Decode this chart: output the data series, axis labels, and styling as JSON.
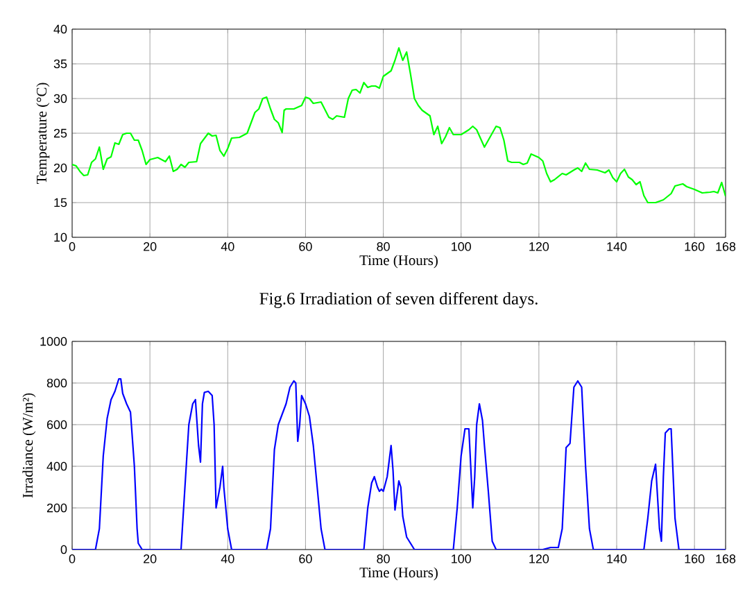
{
  "chart_data": [
    {
      "type": "line",
      "xlabel": "Time (Hours)",
      "ylabel": "Temperature (°C)",
      "color": "#00ff00",
      "grid": true,
      "xlim": [
        0,
        168
      ],
      "ylim": [
        10,
        40
      ],
      "xticks": [
        0,
        20,
        40,
        60,
        80,
        100,
        120,
        140,
        160,
        168
      ],
      "yticks": [
        10,
        15,
        20,
        25,
        30,
        35,
        40
      ],
      "annotations": [
        "Fig.6 Irradiation of seven different days."
      ],
      "x": [
        0,
        1,
        2,
        3,
        4,
        5,
        6,
        7,
        8,
        9,
        10,
        11,
        12,
        13,
        14,
        15,
        16,
        17,
        18,
        19,
        20,
        22,
        24,
        25,
        26,
        27,
        28,
        29,
        30,
        32,
        33,
        35,
        36,
        37,
        38,
        39,
        40,
        41,
        43,
        45,
        46,
        47,
        48,
        49,
        50,
        51,
        52,
        53,
        54,
        54.5,
        55,
        57,
        59,
        60,
        61,
        62,
        64,
        66,
        67,
        68,
        70,
        71,
        72,
        73,
        74,
        75,
        76,
        77,
        78,
        79,
        80,
        82,
        83,
        84,
        85,
        86,
        87,
        88,
        89,
        90,
        92,
        93,
        94,
        95,
        96,
        97,
        98,
        100,
        102,
        103,
        104,
        106,
        108,
        109,
        110,
        111,
        112,
        113,
        115,
        116,
        117,
        118,
        120,
        121,
        122,
        123,
        124,
        126,
        127,
        129,
        130,
        131,
        132,
        133,
        135,
        137,
        138,
        139,
        140,
        141,
        142,
        143,
        144,
        145,
        146,
        147,
        148,
        150,
        152,
        154,
        155,
        157,
        158,
        160,
        162,
        164,
        165,
        166,
        167,
        168
      ],
      "values": [
        20.5,
        20.3,
        19.5,
        18.9,
        19.0,
        20.8,
        21.3,
        23.0,
        19.8,
        21.3,
        21.6,
        23.6,
        23.4,
        24.8,
        25.0,
        25.0,
        24.0,
        24.0,
        22.5,
        20.5,
        21.2,
        21.5,
        20.9,
        21.7,
        19.5,
        19.8,
        20.5,
        20.1,
        20.8,
        20.9,
        23.5,
        25.0,
        24.6,
        24.7,
        22.5,
        21.7,
        22.8,
        24.3,
        24.4,
        25.0,
        26.5,
        28.0,
        28.5,
        30.0,
        30.2,
        28.5,
        27.0,
        26.5,
        25.1,
        28.3,
        28.5,
        28.5,
        29.0,
        30.2,
        30.0,
        29.3,
        29.5,
        27.3,
        27.0,
        27.5,
        27.3,
        30.0,
        31.2,
        31.3,
        30.8,
        32.3,
        31.6,
        31.8,
        31.8,
        31.5,
        33.2,
        34.0,
        35.5,
        37.3,
        35.5,
        36.7,
        33.5,
        30.0,
        29.0,
        28.3,
        27.5,
        24.8,
        26.0,
        23.5,
        24.5,
        25.8,
        24.8,
        24.8,
        25.5,
        26.0,
        25.5,
        23.0,
        25.0,
        26.0,
        25.8,
        24.0,
        21.0,
        20.8,
        20.8,
        20.5,
        20.7,
        22.0,
        21.5,
        21.0,
        19.2,
        18.0,
        18.3,
        19.2,
        19.0,
        19.7,
        20.0,
        19.5,
        20.7,
        19.8,
        19.7,
        19.3,
        19.7,
        18.6,
        18.0,
        19.2,
        19.8,
        18.7,
        18.3,
        17.6,
        18.0,
        16.0,
        15.0,
        15.0,
        15.4,
        16.3,
        17.4,
        17.7,
        17.3,
        16.9,
        16.4,
        16.5,
        16.6,
        16.4,
        17.9,
        15.9
      ]
    },
    {
      "type": "line",
      "xlabel": "Time (Hours)",
      "ylabel": "Irradiance (W/m²)",
      "color": "#0000ff",
      "grid": true,
      "xlim": [
        0,
        168
      ],
      "ylim": [
        0,
        1000
      ],
      "xticks": [
        0,
        20,
        40,
        60,
        80,
        100,
        120,
        140,
        160,
        168
      ],
      "yticks": [
        0,
        200,
        400,
        600,
        800,
        1000
      ],
      "x": [
        0,
        6,
        7,
        8,
        9,
        10,
        11,
        12,
        12.5,
        13,
        14,
        15,
        16,
        16.7,
        17,
        18,
        28,
        29,
        30,
        31,
        31.7,
        32.5,
        33,
        33.5,
        34,
        35,
        36,
        36.5,
        37,
        38,
        38.7,
        39,
        40,
        41,
        50,
        51,
        52,
        53,
        54,
        55,
        56,
        57,
        57.5,
        58,
        58.5,
        59,
        60,
        61,
        62,
        63,
        64,
        65,
        75,
        76,
        77,
        77.7,
        78.5,
        79,
        79.5,
        80,
        81,
        82,
        82.5,
        83,
        84,
        84.5,
        85,
        86,
        87,
        88,
        98,
        99,
        100,
        101,
        102,
        103,
        103.5,
        104,
        104.7,
        105.5,
        106,
        107,
        108,
        109,
        121,
        123,
        125,
        126,
        127,
        128,
        129,
        130,
        131,
        132,
        133,
        134,
        147,
        148,
        149,
        150,
        151,
        151.5,
        152,
        152.5,
        153.5,
        154,
        155,
        156,
        168
      ],
      "values": [
        0,
        0,
        100,
        450,
        630,
        720,
        760,
        820,
        820,
        750,
        700,
        660,
        400,
        100,
        30,
        0,
        0,
        300,
        600,
        700,
        720,
        500,
        420,
        700,
        755,
        760,
        740,
        600,
        200,
        300,
        400,
        300,
        100,
        0,
        0,
        100,
        480,
        600,
        650,
        700,
        780,
        810,
        800,
        520,
        600,
        740,
        700,
        640,
        500,
        300,
        100,
        0,
        0,
        200,
        320,
        350,
        300,
        280,
        290,
        280,
        350,
        500,
        380,
        190,
        330,
        300,
        160,
        60,
        30,
        0,
        0,
        200,
        450,
        580,
        580,
        200,
        350,
        600,
        700,
        620,
        500,
        280,
        40,
        0,
        0,
        10,
        10,
        100,
        490,
        510,
        780,
        810,
        780,
        400,
        100,
        0,
        0,
        150,
        330,
        410,
        100,
        40,
        350,
        560,
        580,
        580,
        150,
        0,
        0
      ]
    }
  ]
}
